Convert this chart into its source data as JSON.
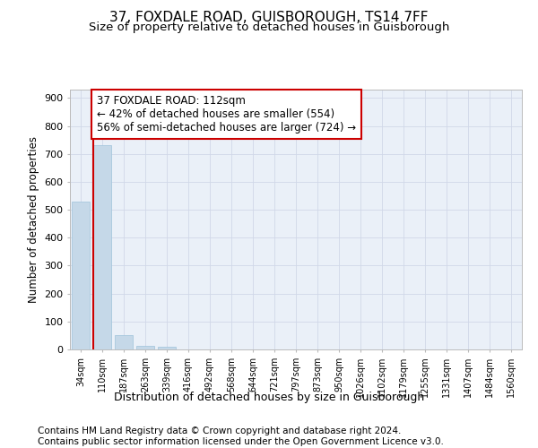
{
  "title1": "37, FOXDALE ROAD, GUISBOROUGH, TS14 7FF",
  "title2": "Size of property relative to detached houses in Guisborough",
  "xlabel": "Distribution of detached houses by size in Guisborough",
  "ylabel": "Number of detached properties",
  "categories": [
    "34sqm",
    "110sqm",
    "187sqm",
    "263sqm",
    "339sqm",
    "416sqm",
    "492sqm",
    "568sqm",
    "644sqm",
    "721sqm",
    "797sqm",
    "873sqm",
    "950sqm",
    "1026sqm",
    "1102sqm",
    "1179sqm",
    "1255sqm",
    "1331sqm",
    "1407sqm",
    "1484sqm",
    "1560sqm"
  ],
  "values": [
    530,
    730,
    50,
    12,
    10,
    0,
    0,
    0,
    0,
    0,
    0,
    0,
    0,
    0,
    0,
    0,
    0,
    0,
    0,
    0,
    0
  ],
  "bar_color": "#c5d8e8",
  "bar_edge_color": "#a8c8de",
  "property_line_color": "#cc0000",
  "annotation_text": "37 FOXDALE ROAD: 112sqm\n← 42% of detached houses are smaller (554)\n56% of semi-detached houses are larger (724) →",
  "annotation_box_color": "#cc0000",
  "ylim": [
    0,
    930
  ],
  "yticks": [
    0,
    100,
    200,
    300,
    400,
    500,
    600,
    700,
    800,
    900
  ],
  "grid_color": "#d0d8e8",
  "background_color": "#eaf0f8",
  "footer": "Contains HM Land Registry data © Crown copyright and database right 2024.\nContains public sector information licensed under the Open Government Licence v3.0.",
  "title1_fontsize": 11,
  "title2_fontsize": 9.5,
  "xlabel_fontsize": 9,
  "ylabel_fontsize": 8.5,
  "annotation_fontsize": 8.5,
  "footer_fontsize": 7.5
}
